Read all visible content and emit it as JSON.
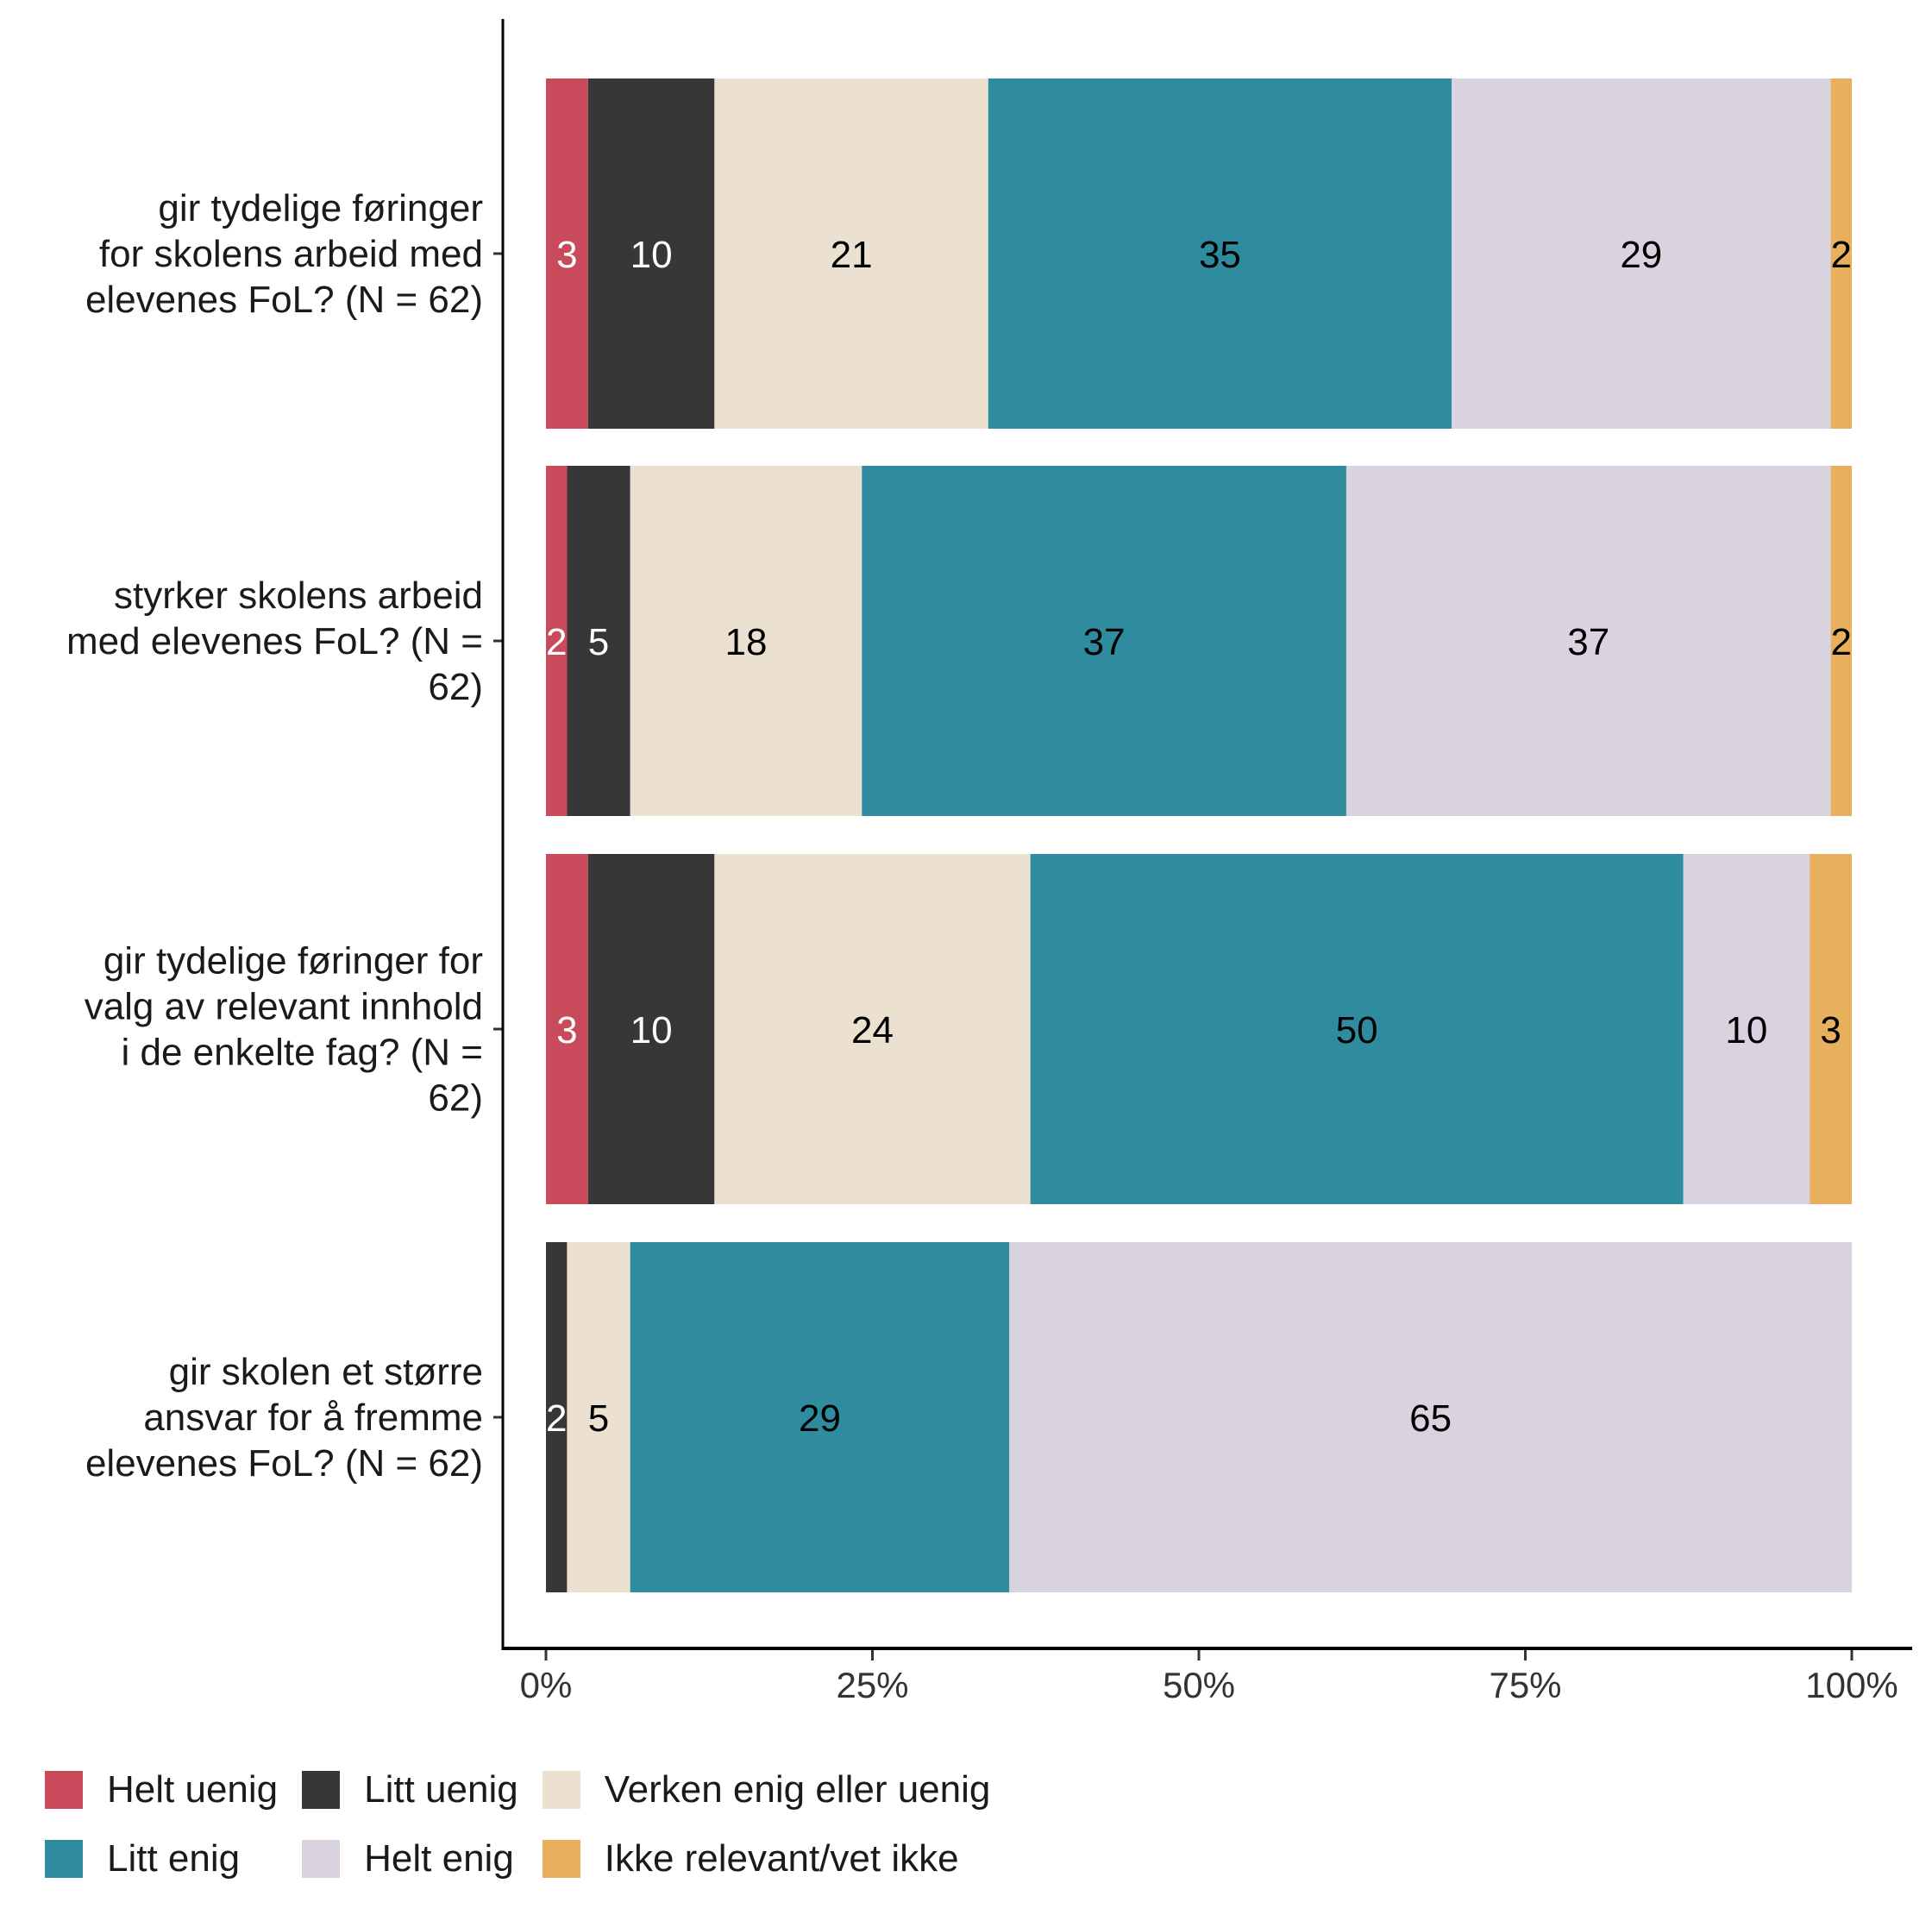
{
  "chart_data": {
    "type": "bar",
    "orientation": "horizontal",
    "stacked": true,
    "normalized": true,
    "title": "",
    "xlabel": "",
    "ylabel": "",
    "xlim": [
      0,
      100
    ],
    "x_ticks": [
      "0%",
      "25%",
      "50%",
      "75%",
      "100%"
    ],
    "x_tick_values": [
      0,
      25,
      50,
      75,
      100
    ],
    "grid": false,
    "legend_position": "bottom",
    "categories": [
      "gir tydelige føringer for skolens arbeid med elevenes FoL? (N = 62)",
      "styrker skolens arbeid med elevenes FoL? (N = 62)",
      "gir tydelige føringer for valg av relevant innhold i de enkelte fag? (N = 62)",
      "gir skolen et større ansvar for å fremme elevenes FoL? (N = 62)"
    ],
    "category_lines": [
      [
        "gir tydelige føringer",
        "for skolens arbeid med",
        "elevenes FoL? (N = 62)"
      ],
      [
        "styrker skolens arbeid",
        "med elevenes FoL? (N =",
        "62)"
      ],
      [
        "gir tydelige føringer for",
        "valg av relevant innhold",
        "i de enkelte fag? (N =",
        "62)"
      ],
      [
        "gir skolen et større",
        "ansvar for å fremme",
        "elevenes FoL? (N = 62)"
      ]
    ],
    "series": [
      {
        "name": "Helt uenig",
        "color": "#C94A5A",
        "label_color": "#ffffff",
        "values": [
          3,
          2,
          3,
          0
        ]
      },
      {
        "name": "Litt uenig",
        "color": "#373737",
        "label_color": "#ffffff",
        "values": [
          10,
          5,
          10,
          2
        ]
      },
      {
        "name": "Verken enig eller uenig",
        "color": "#ECE1D1",
        "label_color": "#000000",
        "values": [
          21,
          18,
          24,
          5
        ]
      },
      {
        "name": "Litt enig",
        "color": "#2E8C9E",
        "label_color": "#000000",
        "values": [
          35,
          37,
          50,
          29
        ]
      },
      {
        "name": "Helt enig",
        "color": "#D9D2DF",
        "label_color": "#000000",
        "values": [
          29,
          37,
          10,
          65
        ]
      },
      {
        "name": "Ikke relevant/vet ikke",
        "color": "#E8AF5D",
        "label_color": "#000000",
        "values": [
          2,
          2,
          3,
          0
        ]
      }
    ],
    "counts_out_of_62": [
      [
        2,
        6,
        13,
        22,
        18,
        1
      ],
      [
        1,
        3,
        11,
        23,
        23,
        1
      ],
      [
        2,
        6,
        15,
        31,
        6,
        2
      ],
      [
        0,
        1,
        3,
        18,
        40,
        0
      ]
    ],
    "data_labels": [
      [
        "3",
        "10",
        "21",
        "35",
        "29",
        "2"
      ],
      [
        "2",
        "5",
        "18",
        "37",
        "37",
        "2"
      ],
      [
        "3",
        "10",
        "24",
        "50",
        "10",
        "3"
      ],
      [
        "",
        "2",
        "5",
        "29",
        "65",
        ""
      ]
    ]
  },
  "legend": {
    "items": [
      {
        "label": "Helt uenig",
        "color": "#C94A5A"
      },
      {
        "label": "Litt uenig",
        "color": "#373737"
      },
      {
        "label": "Verken enig eller uenig",
        "color": "#ECE1D1"
      },
      {
        "label": "Litt enig",
        "color": "#2E8C9E"
      },
      {
        "label": "Helt enig",
        "color": "#D9D2DF"
      },
      {
        "label": "Ikke relevant/vet ikke",
        "color": "#E8AF5D"
      }
    ]
  }
}
